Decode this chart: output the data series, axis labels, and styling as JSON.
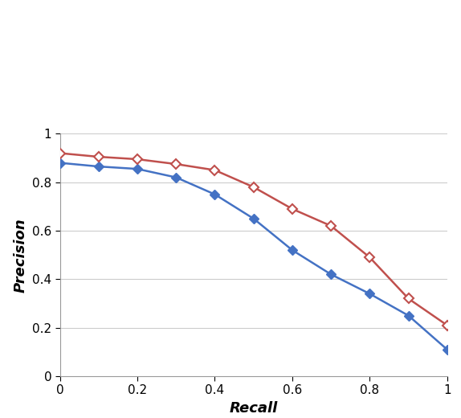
{
  "blue_x": [
    0.0,
    0.1,
    0.2,
    0.3,
    0.4,
    0.5,
    0.6,
    0.7,
    0.8,
    0.9,
    1.0
  ],
  "blue_y": [
    0.88,
    0.865,
    0.855,
    0.82,
    0.75,
    0.65,
    0.52,
    0.42,
    0.34,
    0.25,
    0.11
  ],
  "red_x": [
    0.0,
    0.1,
    0.2,
    0.3,
    0.4,
    0.5,
    0.6,
    0.7,
    0.8,
    0.9,
    1.0
  ],
  "red_y": [
    0.92,
    0.905,
    0.895,
    0.875,
    0.85,
    0.78,
    0.69,
    0.62,
    0.49,
    0.32,
    0.21
  ],
  "blue_color": "#4472C4",
  "red_color": "#C0504D",
  "xlabel": "Recall",
  "ylabel": "Precision",
  "xlim": [
    0,
    1
  ],
  "ylim": [
    0,
    1
  ],
  "xticks": [
    0,
    0.2,
    0.4,
    0.6,
    0.8,
    1
  ],
  "yticks": [
    0,
    0.2,
    0.4,
    0.6,
    0.8,
    1
  ],
  "grid_yticks": [
    0.2,
    0.4,
    0.6,
    0.8,
    1.0
  ],
  "grid_color": "#CCCCCC",
  "marker": "D",
  "marker_size": 6,
  "line_width": 1.8,
  "legend_fontsize": 12,
  "axis_label_fontsize": 13,
  "tick_label_fontsize": 11
}
